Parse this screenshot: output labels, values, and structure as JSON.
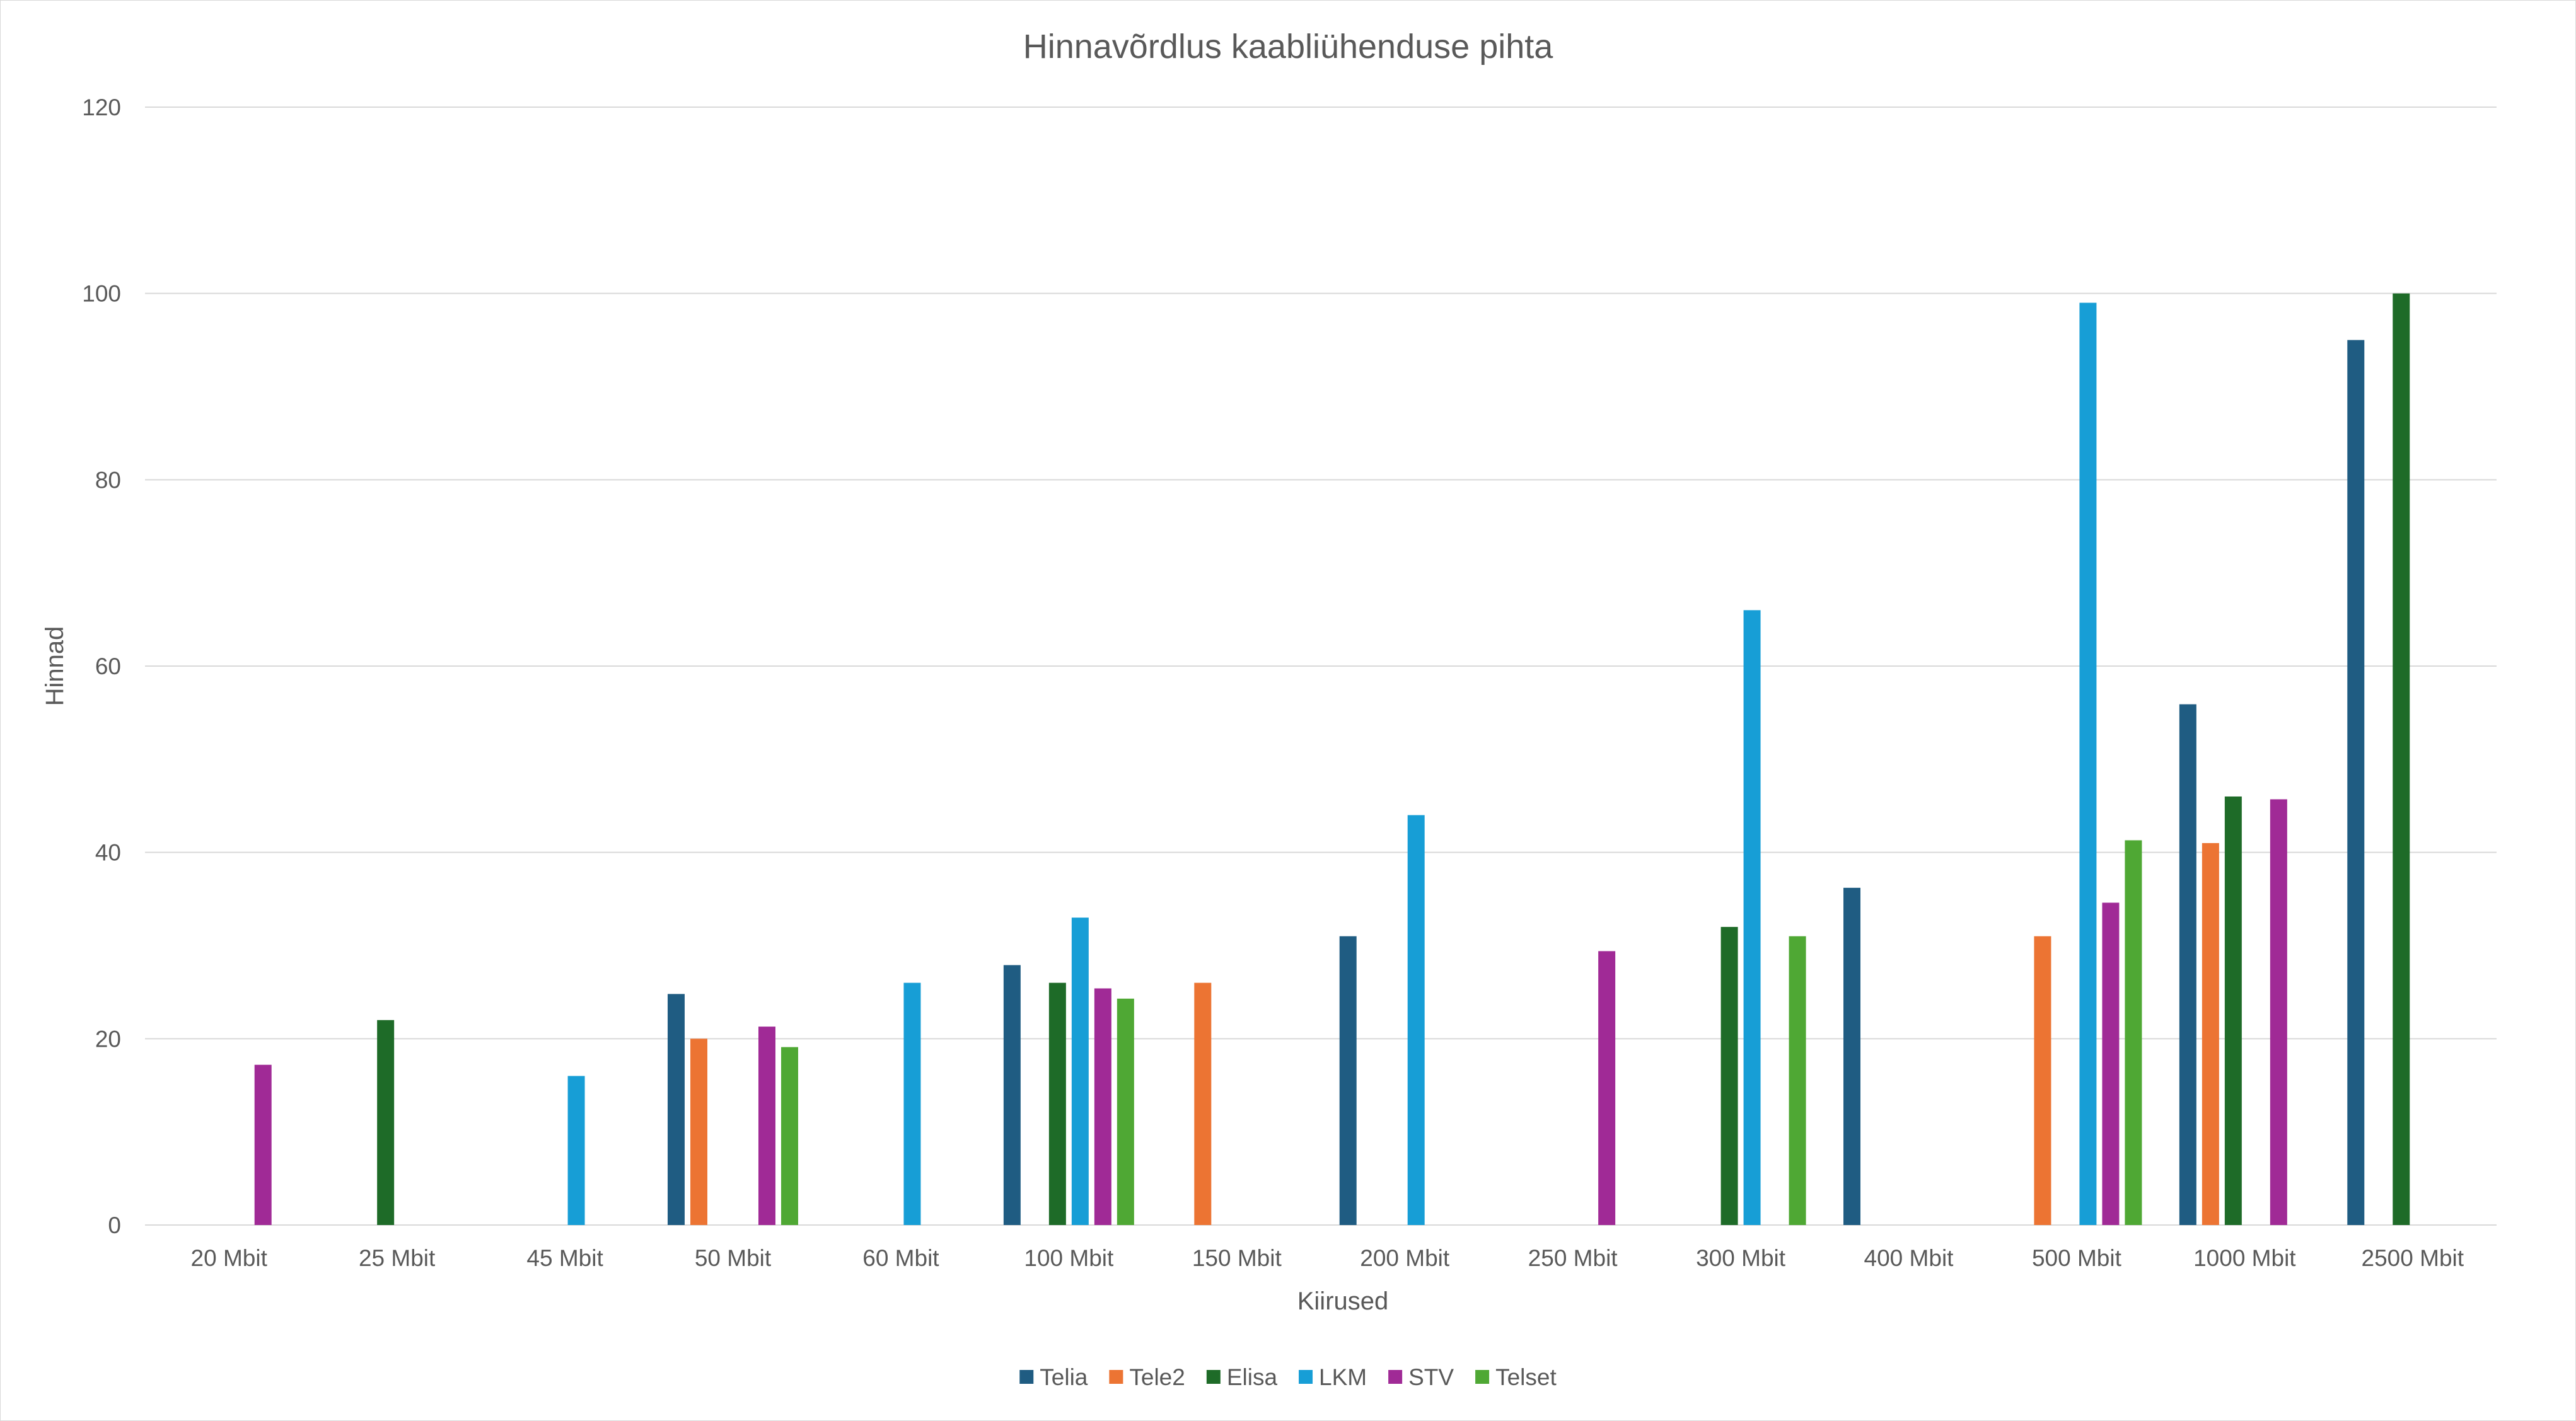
{
  "chart_data": {
    "type": "bar",
    "title": "Hinnavõrdlus kaabliühenduse pihta",
    "xlabel": "Kiirused",
    "ylabel": "Hinnad",
    "ylim": [
      0,
      120
    ],
    "yticks": [
      0,
      20,
      40,
      60,
      80,
      100,
      120
    ],
    "grid": true,
    "legend_position": "bottom",
    "categories": [
      "20 Mbit",
      "25 Mbit",
      "45 Mbit",
      "50 Mbit",
      "60 Mbit",
      "100 Mbit",
      "150 Mbit",
      "200 Mbit",
      "250 Mbit",
      "300 Mbit",
      "400 Mbit",
      "500 Mbit",
      "1000 Mbit",
      "2500 Mbit"
    ],
    "series": [
      {
        "name": "Telia",
        "color": "#1f5c82",
        "values": [
          null,
          null,
          null,
          24.8,
          null,
          27.9,
          null,
          31,
          null,
          null,
          36.2,
          null,
          55.9,
          95
        ]
      },
      {
        "name": "Tele2",
        "color": "#ec7433",
        "values": [
          null,
          null,
          null,
          20,
          null,
          null,
          26,
          null,
          null,
          null,
          null,
          31,
          41,
          null
        ]
      },
      {
        "name": "Elisa",
        "color": "#1e6b28",
        "values": [
          null,
          22,
          null,
          null,
          null,
          26,
          null,
          null,
          null,
          32,
          null,
          null,
          46,
          100
        ]
      },
      {
        "name": "LKM",
        "color": "#179ed6",
        "values": [
          null,
          null,
          16,
          null,
          26,
          33,
          null,
          44,
          null,
          66,
          null,
          99,
          null,
          null
        ]
      },
      {
        "name": "STV",
        "color": "#a02a96",
        "values": [
          17.2,
          null,
          null,
          21.3,
          null,
          25.4,
          null,
          null,
          29.4,
          null,
          null,
          34.6,
          45.7,
          null
        ]
      },
      {
        "name": "Telset",
        "color": "#4fa834",
        "values": [
          null,
          null,
          null,
          19.1,
          null,
          24.3,
          null,
          null,
          null,
          31,
          null,
          41.3,
          null,
          null
        ]
      }
    ]
  }
}
